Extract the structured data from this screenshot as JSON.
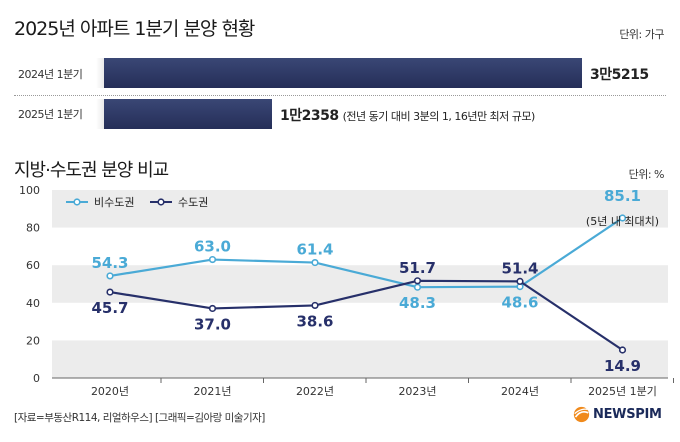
{
  "header": {
    "title": "2025년 아파트 1분기 분양 현황",
    "unit": "단위: 가구"
  },
  "supply_bars": {
    "rows": [
      {
        "label": "2024년 1분기",
        "value": 35215,
        "value_label": "3만5215"
      },
      {
        "label": "2025년 1분기",
        "value": 12358,
        "value_label": "1만2358",
        "note": "(전년 동기 대비 3분의 1, 16년만 최저 규모)"
      }
    ],
    "bar_color": "#2b3563"
  },
  "chart_section": {
    "title": "지방·수도권 분양 비교",
    "unit": "단위: %"
  },
  "chart_data": {
    "type": "line",
    "categories": [
      "2020년",
      "2021년",
      "2022년",
      "2023년",
      "2024년",
      "2025년 1분기"
    ],
    "series": [
      {
        "name": "비수도권",
        "values": [
          54.3,
          63.0,
          61.4,
          48.3,
          48.6,
          85.1
        ],
        "color": "#4aaad6"
      },
      {
        "name": "수도권",
        "values": [
          45.7,
          37.0,
          38.6,
          51.7,
          51.4,
          14.9
        ],
        "color": "#27306a"
      }
    ],
    "value_labels": {
      "비수도권": [
        "54.3",
        "63.0",
        "61.4",
        "48.3",
        "48.6",
        "85.1"
      ],
      "수도권": [
        "45.7",
        "37.0",
        "38.6",
        "51.7",
        "51.4",
        "14.9"
      ]
    },
    "annotation": "(5년 내 최대치)",
    "ylim": [
      0,
      100
    ],
    "yticks": [
      "0",
      "20",
      "40",
      "60",
      "80",
      "100"
    ],
    "legend_position": "top-left",
    "grid_bands": true
  },
  "footer": {
    "source": "[자료=부동산R114, 리얼하우스] [그래픽=김아랑 미술기자]",
    "logo_text": "NEWSPIM"
  }
}
